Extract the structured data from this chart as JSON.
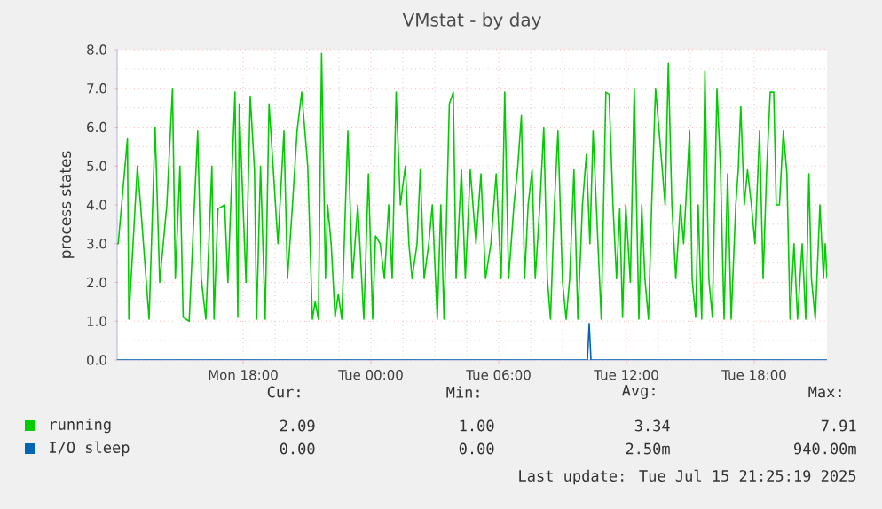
{
  "chart_data": {
    "type": "line",
    "title": "VMstat - by day",
    "ylabel": "process states",
    "xlim": [
      "2025-07-14T12:05",
      "2025-07-15T21:25"
    ],
    "ylim": [
      0,
      8
    ],
    "xticks": [
      {
        "value": "2025-07-14T18:00",
        "label": "Mon 18:00"
      },
      {
        "value": "2025-07-15T00:00",
        "label": "Tue 00:00"
      },
      {
        "value": "2025-07-15T06:00",
        "label": "Tue 06:00"
      },
      {
        "value": "2025-07-15T12:00",
        "label": "Tue 12:00"
      },
      {
        "value": "2025-07-15T18:00",
        "label": "Tue 18:00"
      }
    ],
    "yticks": [
      {
        "value": 0,
        "label": "0.0"
      },
      {
        "value": 1,
        "label": "1.0"
      },
      {
        "value": 2,
        "label": "2.0"
      },
      {
        "value": 3,
        "label": "3.0"
      },
      {
        "value": 4,
        "label": "4.0"
      },
      {
        "value": 5,
        "label": "5.0"
      },
      {
        "value": 6,
        "label": "6.0"
      },
      {
        "value": 7,
        "label": "7.0"
      },
      {
        "value": 8,
        "label": "8.0"
      }
    ],
    "grid": true,
    "legend": "bottom",
    "marker": "none",
    "line_style": "solid",
    "series": [
      {
        "name": "running",
        "color": "#00cc00",
        "x": [
          "2025-07-14T12:05",
          "2025-07-14T12:08",
          "2025-07-14T12:34",
          "2025-07-14T12:38",
          "2025-07-14T13:02",
          "2025-07-14T13:11",
          "2025-07-14T13:35",
          "2025-07-14T13:52",
          "2025-07-14T14:05",
          "2025-07-14T14:25",
          "2025-07-14T14:41",
          "2025-07-14T14:49",
          "2025-07-14T15:02",
          "2025-07-14T15:11",
          "2025-07-14T15:28",
          "2025-07-14T15:52",
          "2025-07-14T16:02",
          "2025-07-14T16:15",
          "2025-07-14T16:32",
          "2025-07-14T16:38",
          "2025-07-14T16:49",
          "2025-07-14T17:08",
          "2025-07-14T17:17",
          "2025-07-14T17:37",
          "2025-07-14T17:45",
          "2025-07-14T17:49",
          "2025-07-14T18:08",
          "2025-07-14T18:20",
          "2025-07-14T18:32",
          "2025-07-14T18:38",
          "2025-07-14T18:49",
          "2025-07-14T19:02",
          "2025-07-14T19:13",
          "2025-07-14T19:25",
          "2025-07-14T19:38",
          "2025-07-14T19:55",
          "2025-07-14T20:05",
          "2025-07-14T20:19",
          "2025-07-14T20:32",
          "2025-07-14T20:45",
          "2025-07-14T21:02",
          "2025-07-14T21:15",
          "2025-07-14T21:23",
          "2025-07-14T21:32",
          "2025-07-14T21:41",
          "2025-07-14T21:52",
          "2025-07-14T21:58",
          "2025-07-14T22:08",
          "2025-07-14T22:19",
          "2025-07-14T22:28",
          "2025-07-14T22:38",
          "2025-07-14T22:55",
          "2025-07-14T23:08",
          "2025-07-14T23:23",
          "2025-07-14T23:40",
          "2025-07-14T23:53",
          "2025-07-15T00:05",
          "2025-07-15T00:13",
          "2025-07-15T00:26",
          "2025-07-15T00:38",
          "2025-07-15T00:50",
          "2025-07-15T01:00",
          "2025-07-15T01:11",
          "2025-07-15T01:23",
          "2025-07-15T01:37",
          "2025-07-15T01:47",
          "2025-07-15T01:56",
          "2025-07-15T02:10",
          "2025-07-15T02:19",
          "2025-07-15T02:30",
          "2025-07-15T02:43",
          "2025-07-15T02:53",
          "2025-07-15T03:07",
          "2025-07-15T03:17",
          "2025-07-15T03:26",
          "2025-07-15T03:41",
          "2025-07-15T03:52",
          "2025-07-15T04:00",
          "2025-07-15T04:15",
          "2025-07-15T04:26",
          "2025-07-15T04:40",
          "2025-07-15T04:56",
          "2025-07-15T05:10",
          "2025-07-15T05:23",
          "2025-07-15T05:38",
          "2025-07-15T05:53",
          "2025-07-15T06:07",
          "2025-07-15T06:17",
          "2025-07-15T06:28",
          "2025-07-15T06:43",
          "2025-07-15T06:53",
          "2025-07-15T07:04",
          "2025-07-15T07:13",
          "2025-07-15T07:23",
          "2025-07-15T07:34",
          "2025-07-15T07:43",
          "2025-07-15T07:56",
          "2025-07-15T08:07",
          "2025-07-15T08:17",
          "2025-07-15T08:26",
          "2025-07-15T08:37",
          "2025-07-15T08:47",
          "2025-07-15T09:00",
          "2025-07-15T09:10",
          "2025-07-15T09:20",
          "2025-07-15T09:32",
          "2025-07-15T09:43",
          "2025-07-15T09:56",
          "2025-07-15T10:07",
          "2025-07-15T10:17",
          "2025-07-15T10:26",
          "2025-07-15T10:35",
          "2025-07-15T10:49",
          "2025-07-15T11:02",
          "2025-07-15T11:11",
          "2025-07-15T11:22",
          "2025-07-15T11:32",
          "2025-07-15T11:41",
          "2025-07-15T11:49",
          "2025-07-15T11:58",
          "2025-07-15T12:11",
          "2025-07-15T12:22",
          "2025-07-15T12:35",
          "2025-07-15T12:43",
          "2025-07-15T12:52",
          "2025-07-15T13:02",
          "2025-07-15T13:11",
          "2025-07-15T13:22",
          "2025-07-15T13:32",
          "2025-07-15T13:41",
          "2025-07-15T13:49",
          "2025-07-15T13:58",
          "2025-07-15T14:08",
          "2025-07-15T14:19",
          "2025-07-15T14:32",
          "2025-07-15T14:41",
          "2025-07-15T14:58",
          "2025-07-15T15:05",
          "2025-07-15T15:15",
          "2025-07-15T15:22",
          "2025-07-15T15:32",
          "2025-07-15T15:41",
          "2025-07-15T15:52",
          "2025-07-15T16:02",
          "2025-07-15T16:15",
          "2025-07-15T16:25",
          "2025-07-15T16:35",
          "2025-07-15T16:45",
          "2025-07-15T16:55",
          "2025-07-15T17:08",
          "2025-07-15T17:15",
          "2025-07-15T17:22",
          "2025-07-15T17:32",
          "2025-07-15T17:41",
          "2025-07-15T17:52",
          "2025-07-15T18:02",
          "2025-07-15T18:15",
          "2025-07-15T18:25",
          "2025-07-15T18:35",
          "2025-07-15T18:45",
          "2025-07-15T18:55",
          "2025-07-15T19:02",
          "2025-07-15T19:11",
          "2025-07-15T19:22",
          "2025-07-15T19:32",
          "2025-07-15T19:41",
          "2025-07-15T19:52",
          "2025-07-15T20:02",
          "2025-07-15T20:15",
          "2025-07-15T20:25",
          "2025-07-15T20:34",
          "2025-07-15T20:41",
          "2025-07-15T20:52",
          "2025-07-15T21:05",
          "2025-07-15T21:15",
          "2025-07-15T21:20",
          "2025-07-15T21:25"
        ],
        "values": [
          3.0,
          3.0,
          5.7,
          1.05,
          5.0,
          4.0,
          1.05,
          6.0,
          2.0,
          4.0,
          7.0,
          2.1,
          5.0,
          1.1,
          1.0,
          5.9,
          2.1,
          1.05,
          5.0,
          1.05,
          3.9,
          4.0,
          2.0,
          6.9,
          1.1,
          6.6,
          2.0,
          6.8,
          4.9,
          1.05,
          5.0,
          1.05,
          6.6,
          4.9,
          3.0,
          5.9,
          2.1,
          4.0,
          5.9,
          6.9,
          5.0,
          1.05,
          1.5,
          1.05,
          7.9,
          2.1,
          4.0,
          3.0,
          1.1,
          1.7,
          1.05,
          5.9,
          2.1,
          4.0,
          1.05,
          4.8,
          1.05,
          3.2,
          3.0,
          2.1,
          4.0,
          2.1,
          6.9,
          4.0,
          5.0,
          3.0,
          2.1,
          3.0,
          4.9,
          2.1,
          3.0,
          4.0,
          1.05,
          4.0,
          1.05,
          6.6,
          6.9,
          2.1,
          4.9,
          2.1,
          4.9,
          3.0,
          4.8,
          2.1,
          3.0,
          4.8,
          2.1,
          6.9,
          2.1,
          4.0,
          4.9,
          6.3,
          2.1,
          4.0,
          4.9,
          2.1,
          4.0,
          6.0,
          2.1,
          1.05,
          4.0,
          5.9,
          2.0,
          1.05,
          2.1,
          4.9,
          1.05,
          4.0,
          5.3,
          3.0,
          5.9,
          4.0,
          1.05,
          6.9,
          6.85,
          4.0,
          2.1,
          3.9,
          1.1,
          4.0,
          2.0,
          7.0,
          1.05,
          4.0,
          2.1,
          1.05,
          4.0,
          7.0,
          5.9,
          4.9,
          4.0,
          7.65,
          4.0,
          2.1,
          4.0,
          3.0,
          5.9,
          2.1,
          1.1,
          4.0,
          1.05,
          7.45,
          2.1,
          1.1,
          7.0,
          4.9,
          1.05,
          4.8,
          1.05,
          4.0,
          4.9,
          6.55,
          4.0,
          4.9,
          4.0,
          3.0,
          5.9,
          2.1,
          4.9,
          6.9,
          6.9,
          4.0,
          4.0,
          5.9,
          4.8,
          1.05,
          3.0,
          1.05,
          3.0,
          1.05,
          4.8,
          2.1,
          1.05,
          4.0,
          2.1,
          3.0,
          2.09
        ]
      },
      {
        "name": "I/O sleep",
        "color": "#0066b3",
        "x": [
          "2025-07-14T12:05",
          "2025-07-15T10:10",
          "2025-07-15T10:15",
          "2025-07-15T10:20",
          "2025-07-15T21:25"
        ],
        "values": [
          0,
          0,
          0.94,
          0,
          0
        ]
      }
    ],
    "annotations": [
      "Cur:",
      "Min:",
      "Avg:",
      "Max:",
      "2.09",
      "1.00",
      "3.34",
      "7.91",
      "0.00",
      "0.00",
      "2.50m",
      "940.00m",
      "Last update: Tue Jul 15 21:25:19 2025"
    ]
  }
}
